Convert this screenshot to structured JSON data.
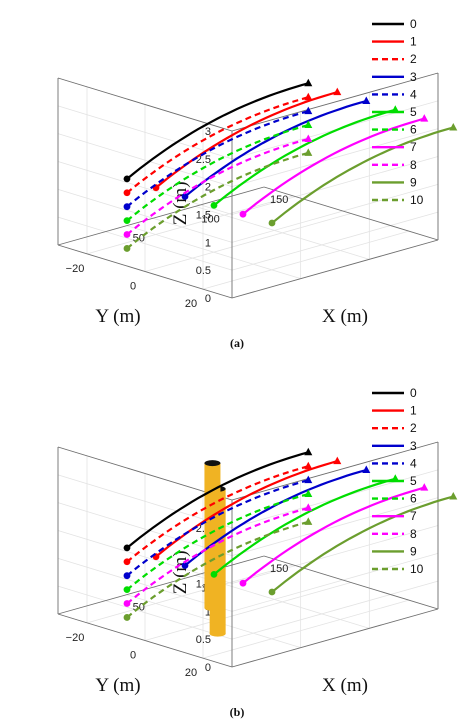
{
  "chart_data": [
    {
      "panel_label": "(a)",
      "type": "line",
      "title": "",
      "xlabel": "X (m)",
      "ylabel": "Y (m)",
      "zlabel": "Z (m)",
      "xlim": [
        0,
        150
      ],
      "ylim": [
        -30,
        30
      ],
      "zlim": [
        0,
        3
      ],
      "x_ticks": [
        "50",
        "100",
        "150"
      ],
      "y_ticks": [
        "20",
        "0",
        "−20"
      ],
      "z_ticks": [
        "0",
        "0.5",
        "1",
        "1.5",
        "2",
        "2.5",
        "3"
      ],
      "grid": true,
      "legend_position": "top-right",
      "obstacles": [],
      "series": [
        {
          "name": "0",
          "color": "#000000",
          "dash": "solid",
          "start": [
            8,
            -10,
            1.45
          ],
          "end": [
            140,
            -10,
            2.25
          ]
        },
        {
          "name": "1",
          "color": "#ff0000",
          "dash": "solid",
          "start": [
            8,
            0,
            1.45
          ],
          "end": [
            140,
            0,
            2.25
          ]
        },
        {
          "name": "2",
          "color": "#ff0000",
          "dash": "dashed",
          "start": [
            8,
            -10,
            1.2
          ],
          "end": [
            140,
            -10,
            2.0
          ]
        },
        {
          "name": "3",
          "color": "#0000cc",
          "dash": "solid",
          "start": [
            8,
            10,
            1.45
          ],
          "end": [
            140,
            10,
            2.25
          ]
        },
        {
          "name": "4",
          "color": "#0000cc",
          "dash": "dashed",
          "start": [
            8,
            -10,
            0.95
          ],
          "end": [
            140,
            -10,
            1.75
          ]
        },
        {
          "name": "5",
          "color": "#00dd00",
          "dash": "solid",
          "start": [
            8,
            20,
            1.45
          ],
          "end": [
            140,
            20,
            2.25
          ]
        },
        {
          "name": "6",
          "color": "#00dd00",
          "dash": "dashed",
          "start": [
            8,
            -10,
            0.7
          ],
          "end": [
            140,
            -10,
            1.5
          ]
        },
        {
          "name": "7",
          "color": "#ff00ff",
          "dash": "solid",
          "start": [
            8,
            30,
            1.45
          ],
          "end": [
            140,
            30,
            2.25
          ]
        },
        {
          "name": "8",
          "color": "#ff00ff",
          "dash": "dashed",
          "start": [
            8,
            -10,
            0.45
          ],
          "end": [
            140,
            -10,
            1.25
          ]
        },
        {
          "name": "9",
          "color": "#6b9e2e",
          "dash": "solid",
          "start": [
            8,
            40,
            1.45
          ],
          "end": [
            140,
            40,
            2.25
          ]
        },
        {
          "name": "10",
          "color": "#6b9e2e",
          "dash": "dashed",
          "start": [
            8,
            -10,
            0.2
          ],
          "end": [
            140,
            -10,
            1.0
          ]
        }
      ]
    },
    {
      "panel_label": "(b)",
      "type": "line",
      "title": "",
      "xlabel": "X (m)",
      "ylabel": "Y (m)",
      "zlabel": "Z (m)",
      "xlim": [
        0,
        150
      ],
      "ylim": [
        -30,
        30
      ],
      "zlim": [
        0,
        3
      ],
      "x_ticks": [
        "50",
        "100",
        "150"
      ],
      "y_ticks": [
        "20",
        "0",
        "−20"
      ],
      "z_ticks": [
        "0",
        "0.5",
        "1",
        "1.5",
        "2",
        "2.5",
        "3"
      ],
      "grid": true,
      "legend_position": "top-right",
      "obstacles": [
        {
          "shape": "cylinder",
          "color": "#f0b323",
          "center": [
            36,
            8
          ],
          "z_range": [
            0,
            2.6
          ]
        },
        {
          "shape": "cylinder",
          "color": "#f0b323",
          "center": [
            66,
            -8
          ],
          "z_range": [
            0,
            2.6
          ]
        }
      ],
      "series": [
        {
          "name": "0",
          "color": "#000000",
          "dash": "solid",
          "start": [
            8,
            -10,
            1.45
          ],
          "end": [
            140,
            -10,
            2.25
          ]
        },
        {
          "name": "1",
          "color": "#ff0000",
          "dash": "solid",
          "start": [
            8,
            0,
            1.45
          ],
          "end": [
            140,
            0,
            2.25
          ]
        },
        {
          "name": "2",
          "color": "#ff0000",
          "dash": "dashed",
          "start": [
            8,
            -10,
            1.2
          ],
          "end": [
            140,
            -10,
            2.0
          ]
        },
        {
          "name": "3",
          "color": "#0000cc",
          "dash": "solid",
          "start": [
            8,
            10,
            1.45
          ],
          "end": [
            140,
            10,
            2.25
          ]
        },
        {
          "name": "4",
          "color": "#0000cc",
          "dash": "dashed",
          "start": [
            8,
            -10,
            0.95
          ],
          "end": [
            140,
            -10,
            1.75
          ]
        },
        {
          "name": "5",
          "color": "#00dd00",
          "dash": "solid",
          "start": [
            8,
            20,
            1.45
          ],
          "end": [
            140,
            20,
            2.25
          ]
        },
        {
          "name": "6",
          "color": "#00dd00",
          "dash": "dashed",
          "start": [
            8,
            -10,
            0.7
          ],
          "end": [
            140,
            -10,
            1.5
          ]
        },
        {
          "name": "7",
          "color": "#ff00ff",
          "dash": "solid",
          "start": [
            8,
            30,
            1.45
          ],
          "end": [
            140,
            30,
            2.25
          ]
        },
        {
          "name": "8",
          "color": "#ff00ff",
          "dash": "dashed",
          "start": [
            8,
            -10,
            0.45
          ],
          "end": [
            140,
            -10,
            1.25
          ]
        },
        {
          "name": "9",
          "color": "#6b9e2e",
          "dash": "solid",
          "start": [
            8,
            40,
            1.45
          ],
          "end": [
            140,
            40,
            2.25
          ]
        },
        {
          "name": "10",
          "color": "#6b9e2e",
          "dash": "dashed",
          "start": [
            8,
            -10,
            0.2
          ],
          "end": [
            140,
            -10,
            1.0
          ]
        }
      ]
    }
  ]
}
